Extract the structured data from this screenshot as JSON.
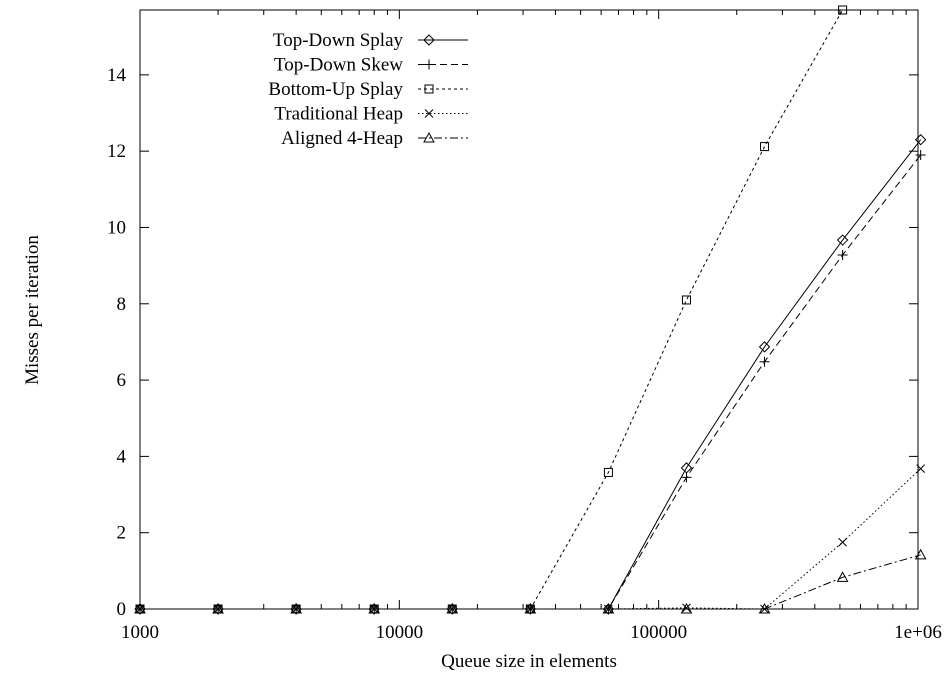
{
  "chart_data": {
    "type": "line",
    "title": "",
    "xlabel": "Queue size in elements",
    "ylabel": "Misses per iteration",
    "x_scale": "log",
    "xlim": [
      1000,
      1000000
    ],
    "ylim": [
      0,
      15.7
    ],
    "x_ticks": [
      1000,
      10000,
      100000,
      1000000
    ],
    "x_tick_labels": [
      "1000",
      "10000",
      "100000",
      "1e+06"
    ],
    "y_ticks": [
      0,
      2,
      4,
      6,
      8,
      10,
      12,
      14
    ],
    "y_tick_labels": [
      "0",
      "2",
      "4",
      "6",
      "8",
      "10",
      "12",
      "14"
    ],
    "grid": false,
    "legend_position": "top-left",
    "x": [
      1000,
      2000,
      4000,
      8000,
      16000,
      32000,
      64000,
      128000,
      256000,
      512000,
      1024000
    ],
    "series": [
      {
        "name": "Top-Down Splay",
        "marker": "diamond",
        "dash": "solid",
        "values": [
          0,
          0,
          0,
          0,
          0,
          0,
          0,
          3.7,
          6.87,
          9.67,
          12.3
        ]
      },
      {
        "name": "Top-Down Skew",
        "marker": "plus",
        "dash": "dashed",
        "values": [
          0,
          0,
          0,
          0,
          0,
          0,
          0,
          3.45,
          6.48,
          9.28,
          11.9
        ]
      },
      {
        "name": "Bottom-Up Splay",
        "marker": "square",
        "dash": "dotted",
        "values": [
          0,
          0,
          0,
          0,
          0,
          0,
          3.58,
          8.1,
          12.12,
          15.7,
          null
        ]
      },
      {
        "name": "Traditional Heap",
        "marker": "cross",
        "dash": "fine-dotted",
        "values": [
          0,
          0,
          0,
          0,
          0,
          0,
          0,
          0.03,
          0,
          1.75,
          3.68
        ]
      },
      {
        "name": "Aligned 4-Heap",
        "marker": "triangle",
        "dash": "dash-dot",
        "values": [
          0,
          0,
          0,
          0,
          0,
          0,
          0,
          0,
          0,
          0.83,
          1.42
        ]
      }
    ]
  }
}
